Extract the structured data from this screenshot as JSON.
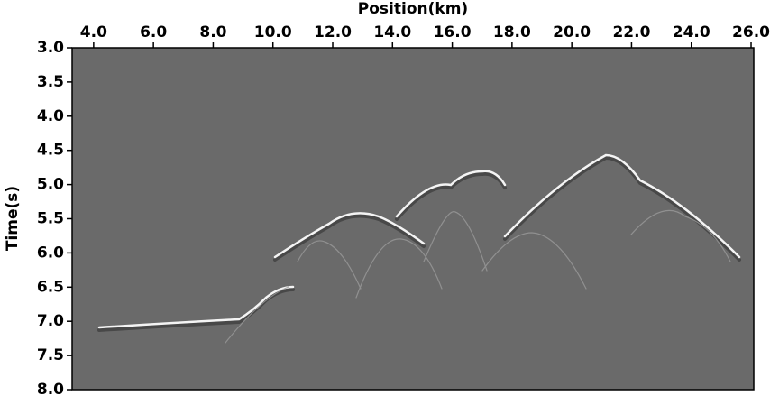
{
  "chart_data": {
    "type": "image",
    "x_label": "Position(km)",
    "y_label": "Time(s)",
    "xlim": [
      3.28,
      26.09
    ],
    "xticks": [
      {
        "value": 4,
        "label": "4.0"
      },
      {
        "value": 6,
        "label": "6.0"
      },
      {
        "value": 8,
        "label": "8.0"
      },
      {
        "value": 10,
        "label": "10.0"
      },
      {
        "value": 12,
        "label": "12.0"
      },
      {
        "value": 14,
        "label": "14.0"
      },
      {
        "value": 16,
        "label": "16.0"
      },
      {
        "value": 18,
        "label": "18.0"
      },
      {
        "value": 20,
        "label": "20.0"
      },
      {
        "value": 22,
        "label": "22.0"
      },
      {
        "value": 24,
        "label": "24.0"
      },
      {
        "value": 26,
        "label": "26.0"
      }
    ],
    "ylim": [
      3,
      8
    ],
    "yticks": [
      {
        "value": 3,
        "label": "3.0"
      },
      {
        "value": 3.5,
        "label": "3.5"
      },
      {
        "value": 4,
        "label": "4.0"
      },
      {
        "value": 4.5,
        "label": "4.5"
      },
      {
        "value": 5,
        "label": "5.0"
      },
      {
        "value": 5.5,
        "label": "5.5"
      },
      {
        "value": 6,
        "label": "6.0"
      },
      {
        "value": 6.5,
        "label": "6.5"
      },
      {
        "value": 7,
        "label": "7.0"
      },
      {
        "value": 7.5,
        "label": "7.5"
      },
      {
        "value": 8,
        "label": "8.0"
      }
    ],
    "y_inverted": true,
    "x_axis_top": true,
    "background": "#6a6a6a"
  }
}
